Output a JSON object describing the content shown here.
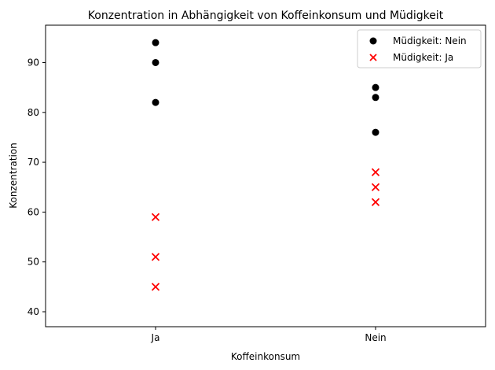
{
  "chart_data": {
    "type": "scatter",
    "title": "Konzentration in Abhängigkeit von Koffeinkonsum und Müdigkeit",
    "xlabel": "Koffeinkonsum",
    "ylabel": "Konzentration",
    "categories": [
      "Ja",
      "Nein"
    ],
    "xlim": [
      -0.5,
      1.5
    ],
    "ylim": [
      37,
      97.5
    ],
    "yticks": [
      40,
      50,
      60,
      70,
      80,
      90
    ],
    "grid": false,
    "legend_position": "top-right",
    "series": [
      {
        "name": "Müdigkeit: Nein",
        "marker": "circle",
        "color": "#000000",
        "points": [
          {
            "x": "Ja",
            "y": 94
          },
          {
            "x": "Ja",
            "y": 90
          },
          {
            "x": "Ja",
            "y": 82
          },
          {
            "x": "Nein",
            "y": 85
          },
          {
            "x": "Nein",
            "y": 83
          },
          {
            "x": "Nein",
            "y": 76
          }
        ]
      },
      {
        "name": "Müdigkeit: Ja",
        "marker": "x",
        "color": "#ff0000",
        "points": [
          {
            "x": "Ja",
            "y": 59
          },
          {
            "x": "Ja",
            "y": 51
          },
          {
            "x": "Ja",
            "y": 45
          },
          {
            "x": "Nein",
            "y": 68
          },
          {
            "x": "Nein",
            "y": 65
          },
          {
            "x": "Nein",
            "y": 62
          }
        ]
      }
    ]
  }
}
